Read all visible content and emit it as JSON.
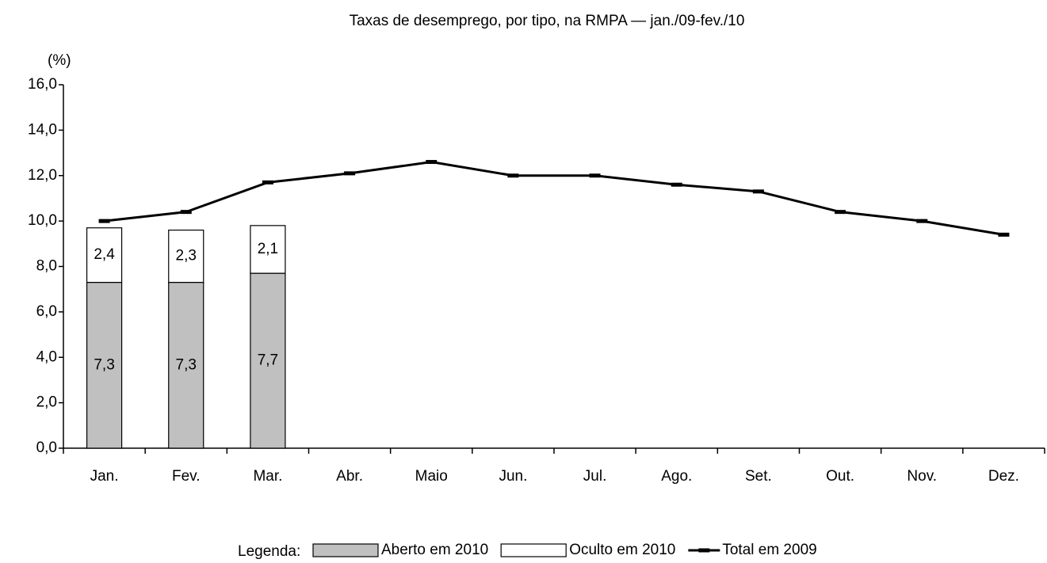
{
  "chart_data": {
    "type": "bar",
    "title": "Taxas de desemprego, por tipo, na RMPA — jan./09-fev./10",
    "y_label": "(%)",
    "legend_title": "Legenda:",
    "stacked": true,
    "categories": [
      "Jan.",
      "Fev.",
      "Mar.",
      "Abr.",
      "Maio",
      "Jun.",
      "Jul.",
      "Ago.",
      "Set.",
      "Out.",
      "Nov.",
      "Dez."
    ],
    "series": [
      {
        "name": "Aberto em 2010",
        "color": "#c0c0c0",
        "values": [
          7.3,
          7.3,
          7.7,
          null,
          null,
          null,
          null,
          null,
          null,
          null,
          null,
          null
        ],
        "value_labels": [
          "7,3",
          "7,3",
          "7,7",
          null,
          null,
          null,
          null,
          null,
          null,
          null,
          null,
          null
        ]
      },
      {
        "name": "Oculto em 2010",
        "color": "#ffffff",
        "values": [
          2.4,
          2.3,
          2.1,
          null,
          null,
          null,
          null,
          null,
          null,
          null,
          null,
          null
        ],
        "value_labels": [
          "2,4",
          "2,3",
          "2,1",
          null,
          null,
          null,
          null,
          null,
          null,
          null,
          null,
          null
        ]
      },
      {
        "name": "Total em 2009",
        "color": "#000000",
        "type": "line",
        "values": [
          10.0,
          10.4,
          11.7,
          12.1,
          12.6,
          12.0,
          12.0,
          11.6,
          11.3,
          10.4,
          10.0,
          9.4
        ]
      }
    ],
    "ylim": [
      0,
      16
    ],
    "yticks": [
      {
        "value": 0,
        "label": "0,0"
      },
      {
        "value": 2,
        "label": "2,0"
      },
      {
        "value": 4,
        "label": "4,0"
      },
      {
        "value": 6,
        "label": "6,0"
      },
      {
        "value": 8,
        "label": "8,0"
      },
      {
        "value": 10,
        "label": "10,0"
      },
      {
        "value": 12,
        "label": "12,0"
      },
      {
        "value": 14,
        "label": "14,0"
      },
      {
        "value": 16,
        "label": "16,0"
      }
    ],
    "grid": false
  }
}
